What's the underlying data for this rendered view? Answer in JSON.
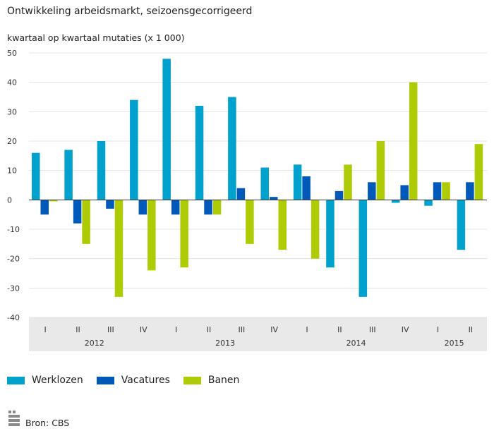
{
  "title": "Ontwikkeling arbeidsmarkt, seizoensgecorrigeerd",
  "subtitle": "kwartaal op kwartaal mutaties (x 1 000)",
  "source": "Bron: CBS",
  "logo_text": "cbs",
  "chart_data": {
    "type": "bar",
    "title": "Ontwikkeling arbeidsmarkt, seizoensgecorrigeerd",
    "ylabel": "kwartaal op kwartaal mutaties (x 1 000)",
    "ylim": [
      -40,
      50
    ],
    "yticks": [
      50,
      40,
      30,
      20,
      10,
      0,
      -10,
      -20,
      -30,
      -40
    ],
    "grid": true,
    "legend_position": "bottom-left",
    "categories": [
      "I",
      "II",
      "III",
      "IV",
      "I",
      "II",
      "III",
      "IV",
      "I",
      "II",
      "III",
      "IV",
      "I",
      "II"
    ],
    "years": [
      {
        "label": "2012",
        "start": 0,
        "count": 4
      },
      {
        "label": "2013",
        "start": 4,
        "count": 4
      },
      {
        "label": "2014",
        "start": 8,
        "count": 4
      },
      {
        "label": "2015",
        "start": 12,
        "count": 2
      }
    ],
    "series": [
      {
        "name": "Werklozen",
        "color": "#00a1cd",
        "values": [
          16,
          17,
          20,
          34,
          48,
          32,
          35,
          11,
          12,
          -23,
          -33,
          -1,
          -2,
          -17
        ]
      },
      {
        "name": "Vacatures",
        "color": "#0058b8",
        "values": [
          -5,
          -8,
          -3,
          -5,
          -5,
          -5,
          4,
          1,
          8,
          3,
          6,
          5,
          6,
          6
        ]
      },
      {
        "name": "Banen",
        "color": "#afcb05",
        "values": [
          -0.5,
          -15,
          -33,
          -24,
          -23,
          -5,
          -15,
          -17,
          -20,
          12,
          20,
          40,
          6,
          19
        ]
      }
    ]
  }
}
